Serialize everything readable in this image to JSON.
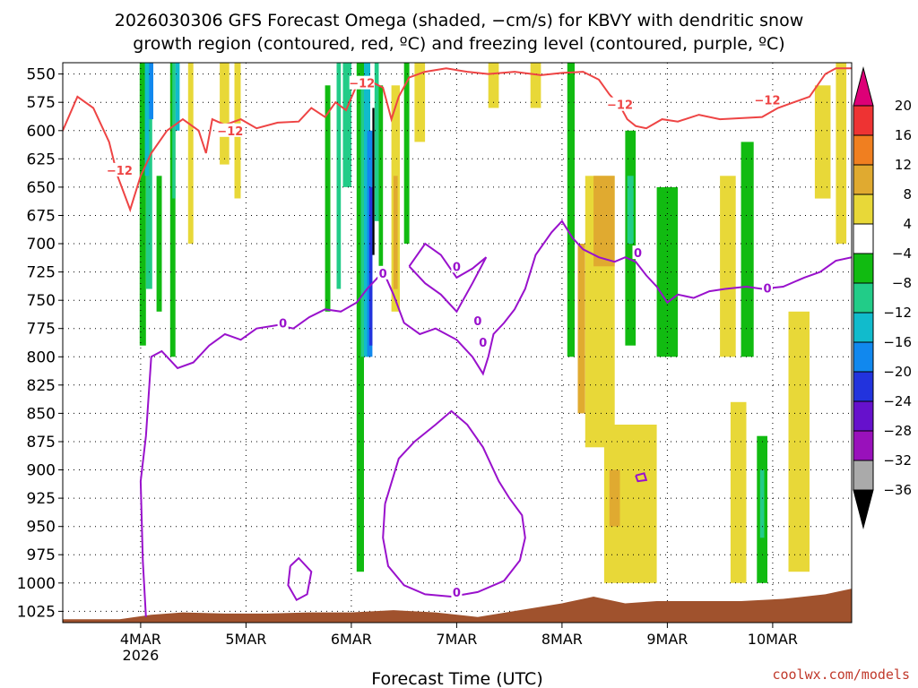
{
  "chart_data": {
    "type": "heatmap",
    "title_line1": "2026030306 GFS Forecast Omega (shaded, −cm/s) for KBVY with dendritic snow",
    "title_line2": "growth region (contoured, red, ºC) and freezing level (contoured, purple, ºC)",
    "xlabel": "Forecast Time (UTC)",
    "credit": "coolwx.com/models",
    "y_axis": {
      "unit": "hPa",
      "inverted": true,
      "range": [
        540,
        1035
      ],
      "ticks": [
        550,
        575,
        600,
        625,
        650,
        675,
        700,
        725,
        750,
        775,
        800,
        825,
        850,
        875,
        900,
        925,
        950,
        975,
        1000,
        1025
      ]
    },
    "x_axis": {
      "unit": "forecast day (March 2026)",
      "range": [
        3.26,
        10.75
      ],
      "ticks": [
        {
          "day": 4,
          "label": "4MAR",
          "sublabel": "2026"
        },
        {
          "day": 5,
          "label": "5MAR",
          "sublabel": ""
        },
        {
          "day": 6,
          "label": "6MAR",
          "sublabel": ""
        },
        {
          "day": 7,
          "label": "7MAR",
          "sublabel": ""
        },
        {
          "day": 8,
          "label": "8MAR",
          "sublabel": ""
        },
        {
          "day": 9,
          "label": "9MAR",
          "sublabel": ""
        },
        {
          "day": 10,
          "label": "10MAR",
          "sublabel": ""
        }
      ]
    },
    "colorbar": {
      "labels": [
        "20",
        "16",
        "12",
        "8",
        "4",
        "−4",
        "−8",
        "−12",
        "−16",
        "−20",
        "−24",
        "−28",
        "−32",
        "−36"
      ],
      "colors_top_to_bottom": [
        "#dd0077",
        "#ee3333",
        "#f07f20",
        "#e0aa30",
        "#e8d838",
        "#ffffff",
        "#11bb11",
        "#22cc88",
        "#11bbcc",
        "#1188ee",
        "#2233dd",
        "#6611cc",
        "#9911bb",
        "#aaaaaa",
        "#000000"
      ]
    },
    "omega_patches": [
      {
        "x0": 3.99,
        "x1": 4.05,
        "p0": 540,
        "p1": 790,
        "color": "#11bb11"
      },
      {
        "x0": 4.05,
        "x1": 4.11,
        "p0": 540,
        "p1": 740,
        "color": "#22cc88"
      },
      {
        "x0": 4.04,
        "x1": 4.08,
        "p0": 540,
        "p1": 640,
        "color": "#11bbcc"
      },
      {
        "x0": 4.08,
        "x1": 4.12,
        "p0": 540,
        "p1": 590,
        "color": "#1188ee"
      },
      {
        "x0": 4.15,
        "x1": 4.2,
        "p0": 640,
        "p1": 760,
        "color": "#11bb11"
      },
      {
        "x0": 4.28,
        "x1": 4.33,
        "p0": 540,
        "p1": 800,
        "color": "#11bb11"
      },
      {
        "x0": 4.3,
        "x1": 4.33,
        "p0": 540,
        "p1": 660,
        "color": "#22cc88"
      },
      {
        "x0": 4.33,
        "x1": 4.37,
        "p0": 540,
        "p1": 600,
        "color": "#11bbcc"
      },
      {
        "x0": 4.45,
        "x1": 4.5,
        "p0": 540,
        "p1": 700,
        "color": "#e8d838"
      },
      {
        "x0": 4.75,
        "x1": 4.84,
        "p0": 540,
        "p1": 630,
        "color": "#e8d838"
      },
      {
        "x0": 4.89,
        "x1": 4.95,
        "p0": 540,
        "p1": 660,
        "color": "#e8d838"
      },
      {
        "x0": 5.75,
        "x1": 5.8,
        "p0": 560,
        "p1": 760,
        "color": "#11bb11"
      },
      {
        "x0": 5.86,
        "x1": 5.9,
        "p0": 540,
        "p1": 740,
        "color": "#22cc88"
      },
      {
        "x0": 5.92,
        "x1": 6.0,
        "p0": 540,
        "p1": 650,
        "color": "#22cc88"
      },
      {
        "x0": 6.05,
        "x1": 6.12,
        "p0": 540,
        "p1": 990,
        "color": "#11bb11"
      },
      {
        "x0": 6.09,
        "x1": 6.14,
        "p0": 560,
        "p1": 800,
        "color": "#22cc88"
      },
      {
        "x0": 6.12,
        "x1": 6.18,
        "p0": 540,
        "p1": 800,
        "color": "#11bbcc"
      },
      {
        "x0": 6.15,
        "x1": 6.2,
        "p0": 600,
        "p1": 800,
        "color": "#1188ee"
      },
      {
        "x0": 6.17,
        "x1": 6.2,
        "p0": 650,
        "p1": 790,
        "color": "#2233dd"
      },
      {
        "x0": 6.2,
        "x1": 6.22,
        "p0": 580,
        "p1": 710,
        "color": "#000000"
      },
      {
        "x0": 6.22,
        "x1": 6.26,
        "p0": 540,
        "p1": 680,
        "color": "#22cc88"
      },
      {
        "x0": 6.26,
        "x1": 6.3,
        "p0": 560,
        "p1": 720,
        "color": "#11bb11"
      },
      {
        "x0": 6.38,
        "x1": 6.46,
        "p0": 560,
        "p1": 760,
        "color": "#e8d838"
      },
      {
        "x0": 6.4,
        "x1": 6.44,
        "p0": 640,
        "p1": 740,
        "color": "#e0aa30"
      },
      {
        "x0": 6.5,
        "x1": 6.55,
        "p0": 540,
        "p1": 700,
        "color": "#11bb11"
      },
      {
        "x0": 6.6,
        "x1": 6.7,
        "p0": 540,
        "p1": 610,
        "color": "#e8d838"
      },
      {
        "x0": 7.3,
        "x1": 7.4,
        "p0": 540,
        "p1": 580,
        "color": "#e8d838"
      },
      {
        "x0": 7.7,
        "x1": 7.8,
        "p0": 540,
        "p1": 580,
        "color": "#e8d838"
      },
      {
        "x0": 8.05,
        "x1": 8.12,
        "p0": 540,
        "p1": 800,
        "color": "#11bb11"
      },
      {
        "x0": 8.15,
        "x1": 8.22,
        "p0": 700,
        "p1": 850,
        "color": "#e0aa30"
      },
      {
        "x0": 8.22,
        "x1": 8.5,
        "p0": 640,
        "p1": 880,
        "color": "#e8d838"
      },
      {
        "x0": 8.3,
        "x1": 8.5,
        "p0": 640,
        "p1": 720,
        "color": "#e0aa30"
      },
      {
        "x0": 8.6,
        "x1": 8.7,
        "p0": 600,
        "p1": 790,
        "color": "#11bb11"
      },
      {
        "x0": 8.62,
        "x1": 8.68,
        "p0": 640,
        "p1": 700,
        "color": "#22cc88"
      },
      {
        "x0": 8.4,
        "x1": 8.9,
        "p0": 860,
        "p1": 1000,
        "color": "#e8d838"
      },
      {
        "x0": 8.45,
        "x1": 8.55,
        "p0": 900,
        "p1": 950,
        "color": "#e0aa30"
      },
      {
        "x0": 8.9,
        "x1": 9.1,
        "p0": 650,
        "p1": 800,
        "color": "#11bb11"
      },
      {
        "x0": 9.5,
        "x1": 9.65,
        "p0": 640,
        "p1": 800,
        "color": "#e8d838"
      },
      {
        "x0": 9.7,
        "x1": 9.82,
        "p0": 610,
        "p1": 800,
        "color": "#11bb11"
      },
      {
        "x0": 9.85,
        "x1": 9.95,
        "p0": 870,
        "p1": 1000,
        "color": "#11bb11"
      },
      {
        "x0": 9.88,
        "x1": 9.92,
        "p0": 900,
        "p1": 960,
        "color": "#22cc88"
      },
      {
        "x0": 9.6,
        "x1": 9.75,
        "p0": 840,
        "p1": 1000,
        "color": "#e8d838"
      },
      {
        "x0": 10.15,
        "x1": 10.35,
        "p0": 760,
        "p1": 990,
        "color": "#e8d838"
      },
      {
        "x0": 10.4,
        "x1": 10.55,
        "p0": 560,
        "p1": 660,
        "color": "#e8d838"
      },
      {
        "x0": 10.6,
        "x1": 10.7,
        "p0": 540,
        "p1": 700,
        "color": "#e8d838"
      }
    ],
    "dgz_contour": {
      "label": "−12",
      "label_points": [
        [
          3.8,
          635
        ],
        [
          4.85,
          600
        ],
        [
          6.1,
          558
        ],
        [
          8.55,
          577
        ],
        [
          9.95,
          573
        ]
      ],
      "path": [
        [
          3.26,
          600
        ],
        [
          3.4,
          570
        ],
        [
          3.55,
          580
        ],
        [
          3.7,
          610
        ],
        [
          3.78,
          640
        ],
        [
          3.9,
          670
        ],
        [
          4.0,
          640
        ],
        [
          4.1,
          620
        ],
        [
          4.25,
          600
        ],
        [
          4.4,
          590
        ],
        [
          4.55,
          600
        ],
        [
          4.62,
          620
        ],
        [
          4.68,
          590
        ],
        [
          4.8,
          595
        ],
        [
          4.95,
          590
        ],
        [
          5.1,
          598
        ],
        [
          5.3,
          593
        ],
        [
          5.5,
          592
        ],
        [
          5.62,
          580
        ],
        [
          5.75,
          588
        ],
        [
          5.85,
          575
        ],
        [
          5.95,
          582
        ],
        [
          6.05,
          560
        ],
        [
          6.15,
          555
        ],
        [
          6.3,
          562
        ],
        [
          6.38,
          590
        ],
        [
          6.45,
          570
        ],
        [
          6.55,
          553
        ],
        [
          6.7,
          548
        ],
        [
          6.9,
          545
        ],
        [
          7.1,
          548
        ],
        [
          7.3,
          550
        ],
        [
          7.55,
          548
        ],
        [
          7.8,
          551
        ],
        [
          8.0,
          549
        ],
        [
          8.2,
          548
        ],
        [
          8.35,
          555
        ],
        [
          8.45,
          568
        ],
        [
          8.55,
          578
        ],
        [
          8.62,
          590
        ],
        [
          8.7,
          596
        ],
        [
          8.8,
          598
        ],
        [
          8.95,
          590
        ],
        [
          9.1,
          592
        ],
        [
          9.3,
          586
        ],
        [
          9.5,
          590
        ],
        [
          9.7,
          589
        ],
        [
          9.9,
          588
        ],
        [
          10.05,
          580
        ],
        [
          10.2,
          575
        ],
        [
          10.35,
          570
        ],
        [
          10.5,
          550
        ],
        [
          10.6,
          545
        ],
        [
          10.75,
          545
        ]
      ]
    },
    "freezing_level_contours": [
      {
        "label": "0",
        "label_points": [
          [
            5.35,
            770
          ],
          [
            6.3,
            726
          ],
          [
            7.2,
            768
          ],
          [
            7.25,
            787
          ],
          [
            8.72,
            708
          ],
          [
            9.95,
            739
          ]
        ],
        "path": [
          [
            4.05,
            1030
          ],
          [
            4.02,
            980
          ],
          [
            4.0,
            910
          ],
          [
            4.05,
            870
          ],
          [
            4.1,
            800
          ],
          [
            4.2,
            795
          ],
          [
            4.35,
            810
          ],
          [
            4.5,
            805
          ],
          [
            4.65,
            790
          ],
          [
            4.8,
            780
          ],
          [
            4.95,
            785
          ],
          [
            5.1,
            775
          ],
          [
            5.3,
            772
          ],
          [
            5.45,
            775
          ],
          [
            5.6,
            765
          ],
          [
            5.75,
            758
          ],
          [
            5.9,
            760
          ],
          [
            6.05,
            752
          ],
          [
            6.15,
            740
          ],
          [
            6.25,
            730
          ],
          [
            6.32,
            728
          ],
          [
            6.4,
            745
          ],
          [
            6.5,
            770
          ],
          [
            6.65,
            780
          ],
          [
            6.8,
            775
          ],
          [
            7.0,
            785
          ],
          [
            7.15,
            800
          ],
          [
            7.25,
            815
          ],
          [
            7.3,
            800
          ],
          [
            7.35,
            780
          ],
          [
            7.45,
            770
          ],
          [
            7.55,
            758
          ],
          [
            7.65,
            740
          ],
          [
            7.75,
            710
          ],
          [
            7.9,
            690
          ],
          [
            8.0,
            680
          ],
          [
            8.1,
            695
          ],
          [
            8.2,
            705
          ],
          [
            8.35,
            712
          ],
          [
            8.5,
            716
          ],
          [
            8.6,
            712
          ],
          [
            8.7,
            716
          ],
          [
            8.8,
            728
          ],
          [
            8.9,
            738
          ],
          [
            9.0,
            752
          ],
          [
            9.1,
            745
          ],
          [
            9.25,
            748
          ],
          [
            9.4,
            742
          ],
          [
            9.55,
            740
          ],
          [
            9.75,
            738
          ],
          [
            9.9,
            740
          ],
          [
            10.1,
            738
          ],
          [
            10.3,
            730
          ],
          [
            10.45,
            725
          ],
          [
            10.6,
            715
          ],
          [
            10.75,
            712
          ]
        ]
      },
      {
        "label": "0",
        "label_points": [
          [
            7.0,
            1008
          ]
        ],
        "path": [
          [
            6.32,
            930
          ],
          [
            6.45,
            890
          ],
          [
            6.6,
            875
          ],
          [
            6.8,
            860
          ],
          [
            6.95,
            848
          ],
          [
            7.1,
            860
          ],
          [
            7.25,
            880
          ],
          [
            7.4,
            910
          ],
          [
            7.5,
            925
          ],
          [
            7.62,
            940
          ],
          [
            7.65,
            960
          ],
          [
            7.6,
            980
          ],
          [
            7.45,
            998
          ],
          [
            7.2,
            1008
          ],
          [
            6.95,
            1012
          ],
          [
            6.7,
            1010
          ],
          [
            6.5,
            1002
          ],
          [
            6.35,
            985
          ],
          [
            6.3,
            960
          ],
          [
            6.32,
            930
          ]
        ]
      },
      {
        "label": "0",
        "label_points": [
          [
            7.0,
            720
          ]
        ],
        "path": [
          [
            6.55,
            720
          ],
          [
            6.7,
            700
          ],
          [
            6.85,
            710
          ],
          [
            7.0,
            730
          ],
          [
            7.15,
            722
          ],
          [
            7.28,
            712
          ],
          [
            7.15,
            735
          ],
          [
            7.0,
            760
          ],
          [
            6.85,
            745
          ],
          [
            6.7,
            735
          ],
          [
            6.55,
            720
          ]
        ]
      },
      {
        "label": "",
        "label_points": [],
        "path": [
          [
            5.42,
            985
          ],
          [
            5.5,
            978
          ],
          [
            5.62,
            990
          ],
          [
            5.58,
            1010
          ],
          [
            5.48,
            1015
          ],
          [
            5.4,
            1002
          ],
          [
            5.42,
            985
          ]
        ]
      },
      {
        "label": "",
        "label_points": [],
        "path": [
          [
            8.7,
            905
          ],
          [
            8.78,
            903
          ],
          [
            8.8,
            909
          ],
          [
            8.72,
            910
          ],
          [
            8.7,
            905
          ]
        ]
      }
    ],
    "terrain": {
      "color": "#a0522d",
      "surface": [
        [
          3.26,
          1032
        ],
        [
          3.8,
          1032
        ],
        [
          4.1,
          1028
        ],
        [
          4.4,
          1026
        ],
        [
          4.8,
          1027
        ],
        [
          5.2,
          1027
        ],
        [
          5.6,
          1026
        ],
        [
          6.0,
          1026
        ],
        [
          6.4,
          1024
        ],
        [
          6.8,
          1026
        ],
        [
          7.2,
          1030
        ],
        [
          7.6,
          1024
        ],
        [
          8.0,
          1018
        ],
        [
          8.3,
          1012
        ],
        [
          8.6,
          1018
        ],
        [
          8.9,
          1016
        ],
        [
          9.3,
          1016
        ],
        [
          9.7,
          1016
        ],
        [
          10.1,
          1014
        ],
        [
          10.5,
          1010
        ],
        [
          10.75,
          1005
        ]
      ]
    }
  }
}
